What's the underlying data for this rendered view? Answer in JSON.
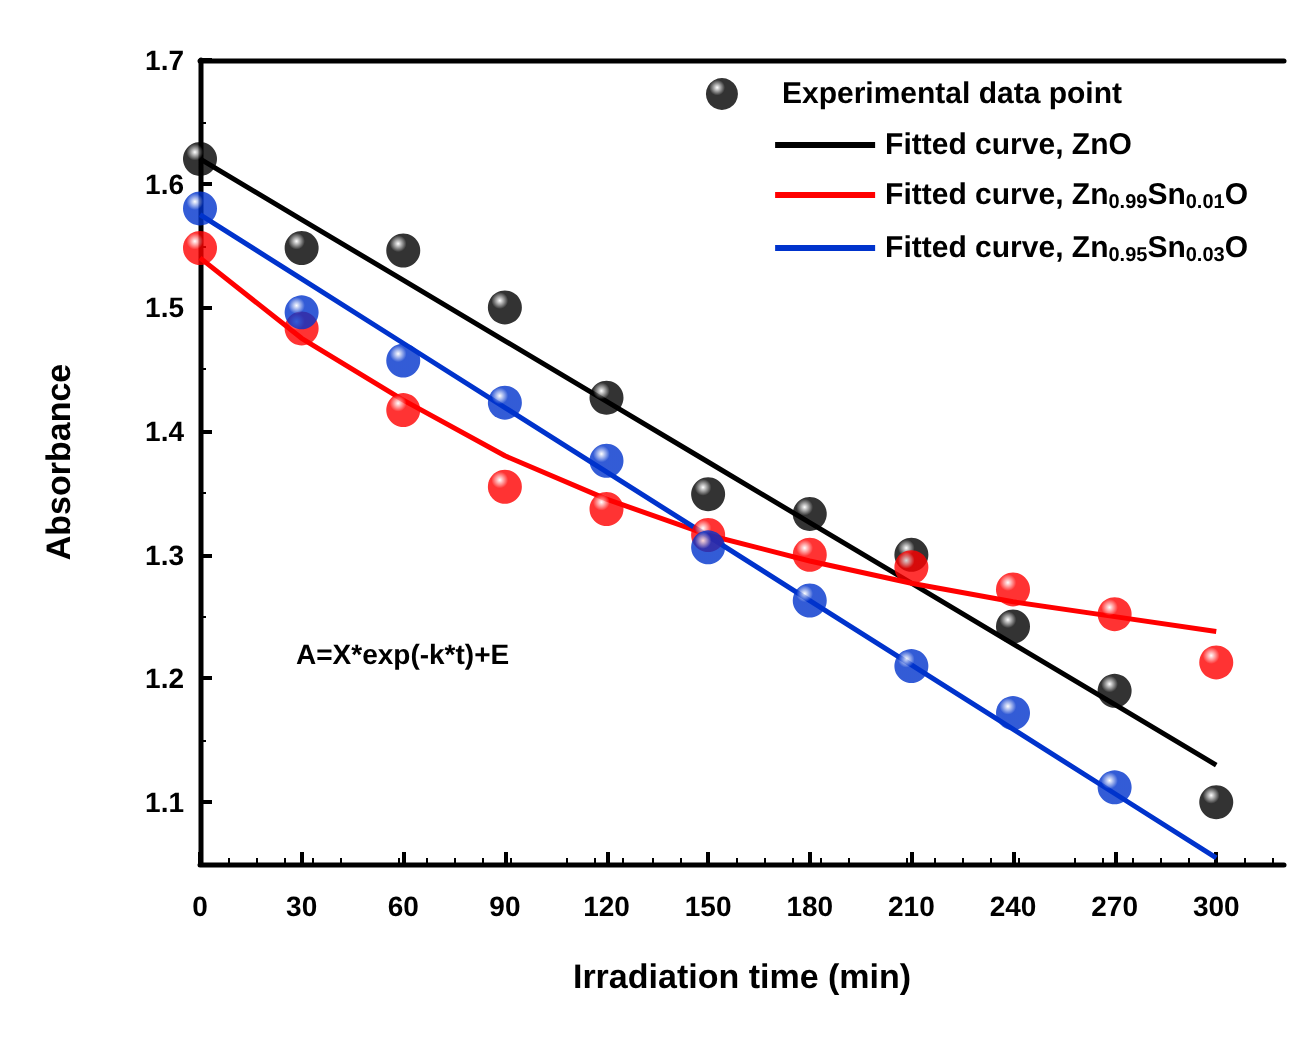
{
  "chart_data": {
    "type": "scatter",
    "xlabel": "Irradiation time (min)",
    "ylabel": "Absorbance",
    "x": [
      0,
      30,
      60,
      90,
      120,
      150,
      180,
      210,
      240,
      270,
      300
    ],
    "series": [
      {
        "name": "Experimental data point",
        "color": "#000000",
        "values": [
          1.62,
          1.548,
          1.546,
          1.5,
          1.427,
          1.349,
          1.333,
          1.3,
          1.242,
          1.19,
          1.1
        ]
      },
      {
        "color": "#ff0000",
        "values": [
          1.548,
          1.483,
          1.417,
          1.355,
          1.337,
          1.316,
          1.3,
          1.29,
          1.272,
          1.252,
          1.213
        ]
      },
      {
        "color": "#0033cc",
        "x": [
          0,
          30,
          60,
          90,
          120,
          150,
          180,
          210,
          240,
          270
        ],
        "values": [
          1.58,
          1.496,
          1.457,
          1.423,
          1.376,
          1.306,
          1.263,
          1.21,
          1.172,
          1.112
        ]
      },
      {
        "name": "Fitted curve, ZnO",
        "type": "line",
        "color": "#000000",
        "marker": "none",
        "values": [
          1.62,
          1.571,
          1.522,
          1.473,
          1.424,
          1.375,
          1.326,
          1.277,
          1.228,
          1.179,
          1.13
        ]
      },
      {
        "name": "Fitted curve, Zn$_{0.99}$Sn$_{0.01}$O",
        "type": "line",
        "color": "#ff0000",
        "marker": "none",
        "values": [
          1.54,
          1.475,
          1.425,
          1.38,
          1.345,
          1.316,
          1.295,
          1.277,
          1.262,
          1.25,
          1.238
        ]
      },
      {
        "name": "Fitted curve, Zn$_{0.95}$Sn$_{0.03}$O",
        "type": "line",
        "color": "#0033cc",
        "marker": "none",
        "values": [
          1.575,
          1.523,
          1.471,
          1.419,
          1.367,
          1.315,
          1.263,
          1.211,
          1.159,
          1.107,
          1.055
        ]
      }
    ],
    "xlim": [
      0,
      320
    ],
    "xticks": [
      0,
      30,
      60,
      90,
      120,
      150,
      180,
      210,
      240,
      270,
      300
    ],
    "ylim": [
      1.05,
      1.7
    ],
    "yticks": [
      1.1,
      1.2,
      1.3,
      1.4,
      1.5,
      1.6,
      1.7
    ],
    "marker": "circle",
    "grid": false,
    "legend": "top right",
    "annotations": [
      "A=X*exp(-k*t)+E"
    ]
  }
}
